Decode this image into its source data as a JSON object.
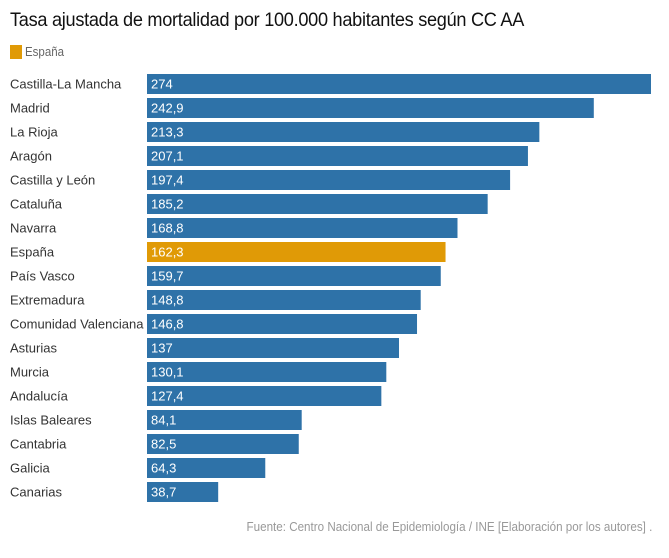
{
  "chart_data": {
    "type": "bar",
    "orientation": "horizontal",
    "title": "Tasa ajustada de mortalidad por 100.000 habitantes según CC AA",
    "legend": [
      {
        "label": "España",
        "color": "#e09a06"
      }
    ],
    "categories": [
      "Castilla-La Mancha",
      "Madrid",
      "La Rioja",
      "Aragón",
      "Castilla y León",
      "Cataluña",
      "Navarra",
      "España",
      "País Vasco",
      "Extremadura",
      "Comunidad Valenciana",
      "Asturias",
      "Murcia",
      "Andalucía",
      "Islas Baleares",
      "Cantabria",
      "Galicia",
      "Canarias"
    ],
    "values": [
      274,
      242.9,
      213.3,
      207.1,
      197.4,
      185.2,
      168.8,
      162.3,
      159.7,
      148.8,
      146.8,
      137,
      130.1,
      127.4,
      84.1,
      82.5,
      64.3,
      38.7
    ],
    "value_labels": [
      "274",
      "242,9",
      "213,3",
      "207,1",
      "197,4",
      "185,2",
      "168,8",
      "162,3",
      "159,7",
      "148,8",
      "146,8",
      "137",
      "130,1",
      "127,4",
      "84,1",
      "82,5",
      "64,3",
      "38,7"
    ],
    "highlight": "España",
    "colors": {
      "default": "#2e72a8",
      "highlight": "#e09a06"
    },
    "xlim": [
      0,
      274
    ],
    "xlabel": "",
    "ylabel": "",
    "grid": false,
    "source": "Fuente: Centro Nacional de Epidemiología / INE [Elaboración por los autores] ."
  }
}
